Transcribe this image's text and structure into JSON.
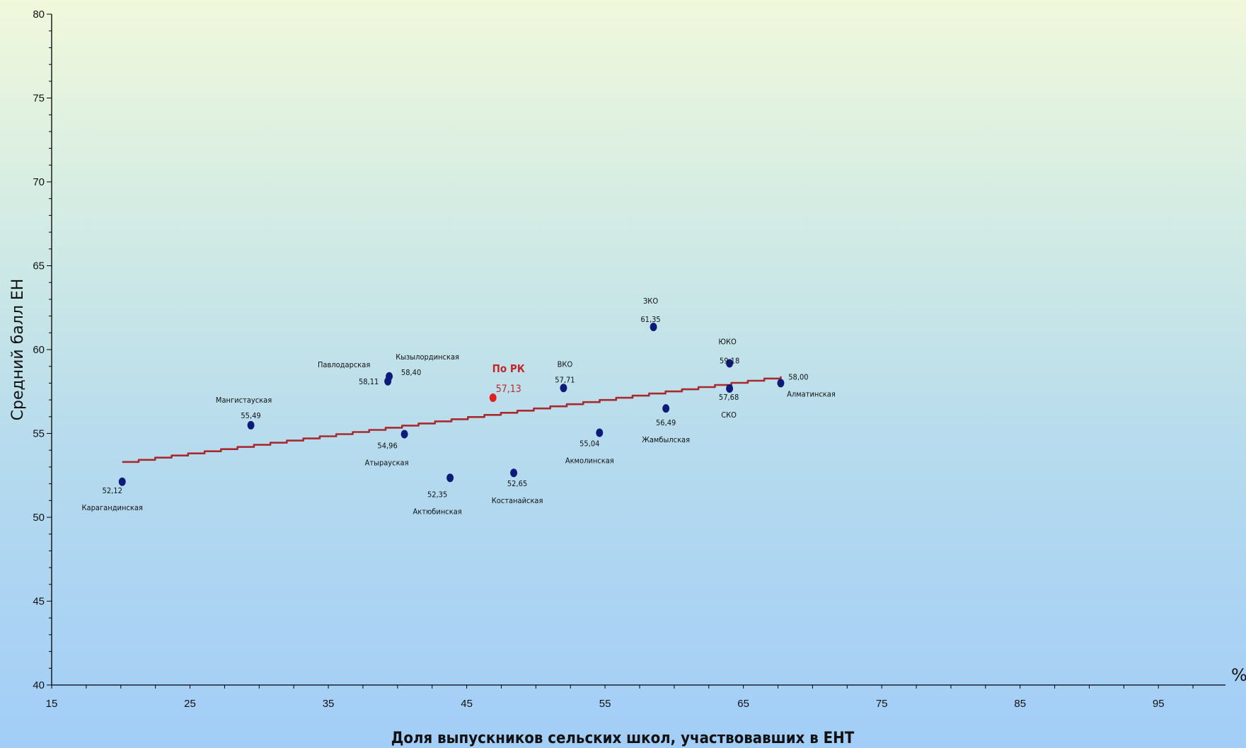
{
  "chart_data": {
    "type": "scatter",
    "title": "",
    "xlabel": "Доля выпускников сельских школ, участвовавших в ЕНТ",
    "ylabel": "Средний балл ЕН",
    "x_unit": "%",
    "xlim": [
      15,
      100
    ],
    "ylim": [
      40,
      80
    ],
    "x_ticks": [
      15,
      25,
      35,
      45,
      55,
      65,
      75,
      85,
      95
    ],
    "y_ticks": [
      40,
      45,
      50,
      55,
      60,
      65,
      70,
      75,
      80
    ],
    "grid": false,
    "colors": {
      "points": "#0d1a7a",
      "highlight": "#e0201e",
      "trendline": "#a82a2e",
      "axis": "#000000"
    },
    "points": [
      {
        "name": "Карагандинская",
        "value_label": "52,12",
        "x": 20.1,
        "y": 52.12,
        "highlight": false
      },
      {
        "name": "Мангистауская",
        "value_label": "55,49",
        "x": 29.4,
        "y": 55.49,
        "highlight": false
      },
      {
        "name": "Павлодарская",
        "value_label": "58,11",
        "x": 39.3,
        "y": 58.11,
        "highlight": false
      },
      {
        "name": "Кызылординская",
        "value_label": "58,40",
        "x": 39.4,
        "y": 58.4,
        "highlight": false
      },
      {
        "name": "Атырауская",
        "value_label": "54,96",
        "x": 40.5,
        "y": 54.96,
        "highlight": false
      },
      {
        "name": "Актюбинская",
        "value_label": "52,35",
        "x": 43.8,
        "y": 52.35,
        "highlight": false
      },
      {
        "name": "По РК",
        "value_label": "57,13",
        "x": 46.9,
        "y": 57.13,
        "highlight": true
      },
      {
        "name": "Костанайская",
        "value_label": "52,65",
        "x": 48.4,
        "y": 52.65,
        "highlight": false
      },
      {
        "name": "ВКО",
        "value_label": "57,71",
        "x": 52.0,
        "y": 57.71,
        "highlight": false
      },
      {
        "name": "Акмолинская",
        "value_label": "55,04",
        "x": 54.6,
        "y": 55.04,
        "highlight": false
      },
      {
        "name": "ЗКО",
        "value_label": "61,35",
        "x": 58.5,
        "y": 61.35,
        "highlight": false
      },
      {
        "name": "Жамбылская",
        "value_label": "56,49",
        "x": 59.4,
        "y": 56.49,
        "highlight": false
      },
      {
        "name": "ЮКО",
        "value_label": "59,18",
        "x": 64.0,
        "y": 59.18,
        "highlight": false
      },
      {
        "name": "СКО",
        "value_label": "57,68",
        "x": 64.0,
        "y": 57.68,
        "highlight": false
      },
      {
        "name": "Алматинская",
        "value_label": "58,00",
        "x": 67.7,
        "y": 58.0,
        "highlight": false
      }
    ],
    "trendline": {
      "x": [
        20.1,
        67.7
      ],
      "y": [
        53.3,
        58.4
      ]
    }
  }
}
